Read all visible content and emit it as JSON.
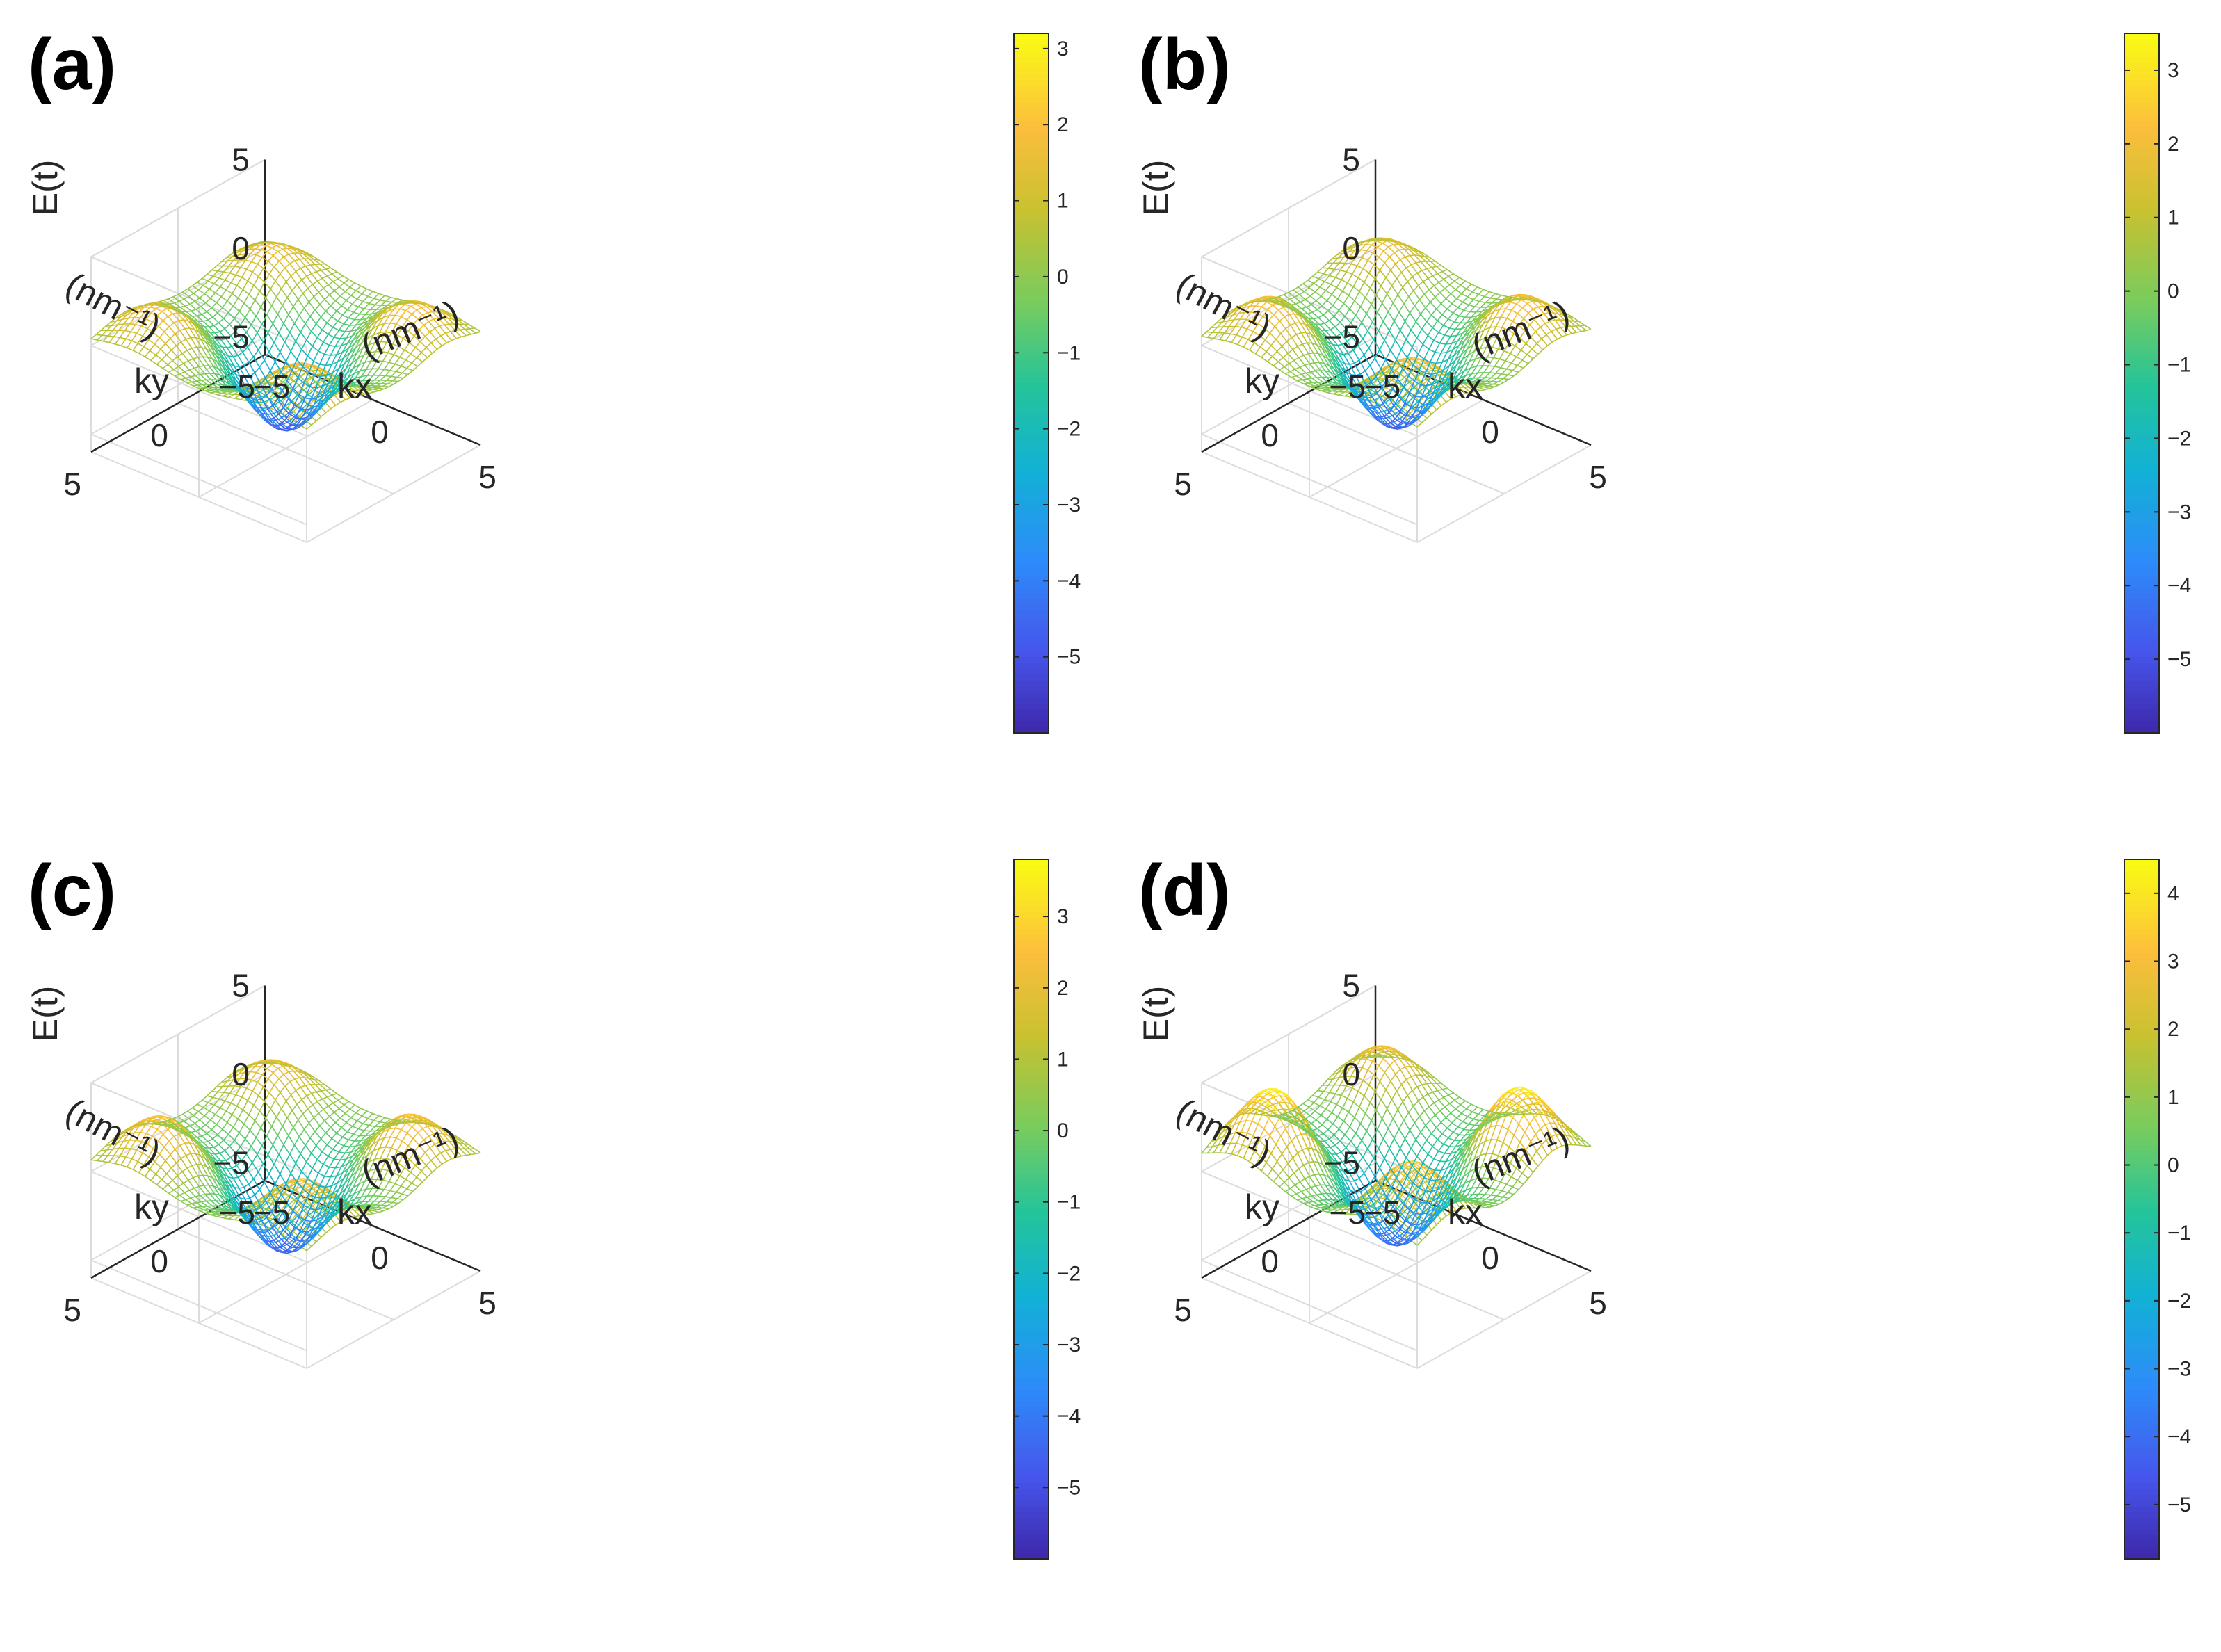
{
  "figure": {
    "panels": [
      "(a)",
      "(b)",
      "(c)",
      "(d)"
    ]
  },
  "chart_data": [
    {
      "panel": "(a)",
      "type": "surface-mesh",
      "title": "",
      "xlabel": "kx",
      "xunit": "(nm⁻¹)",
      "ylabel": "ky",
      "yunit": "(nm⁻¹)",
      "zlabel": "E(t)",
      "xlim": [
        -5,
        5
      ],
      "ylim": [
        -5,
        5
      ],
      "zlim": [
        -6,
        5
      ],
      "x_ticks": [
        "−5",
        "0",
        "5"
      ],
      "y_ticks": [
        "−5",
        "0",
        "5"
      ],
      "z_ticks": [
        "−5",
        "0",
        "5"
      ],
      "colorbar": {
        "min": -6,
        "max": 3.2,
        "ticks": [
          "3",
          "2",
          "1",
          "0",
          "−1",
          "−2",
          "−3",
          "−4",
          "−5"
        ],
        "tick_values": [
          3,
          2,
          1,
          0,
          -1,
          -2,
          -3,
          -4,
          -5
        ]
      },
      "surface": {
        "min_at": [
          0,
          0
        ],
        "min_value": -6,
        "edge_level": 0.2,
        "hump_amplitude": 1.4,
        "hump_spread": 0.0
      }
    },
    {
      "panel": "(b)",
      "type": "surface-mesh",
      "title": "",
      "xlabel": "kx",
      "xunit": "(nm⁻¹)",
      "ylabel": "ky",
      "yunit": "(nm⁻¹)",
      "zlabel": "E(t)",
      "xlim": [
        -5,
        5
      ],
      "ylim": [
        -5,
        5
      ],
      "zlim": [
        -6,
        5
      ],
      "x_ticks": [
        "−5",
        "0",
        "5"
      ],
      "y_ticks": [
        "−5",
        "0",
        "5"
      ],
      "z_ticks": [
        "−5",
        "0",
        "5"
      ],
      "colorbar": {
        "min": -6,
        "max": 3.5,
        "ticks": [
          "3",
          "2",
          "1",
          "0",
          "−1",
          "−2",
          "−3",
          "−4",
          "−5"
        ],
        "tick_values": [
          3,
          2,
          1,
          0,
          -1,
          -2,
          -3,
          -4,
          -5
        ]
      },
      "surface": {
        "min_at": [
          0,
          0
        ],
        "min_value": -6,
        "edge_level": 0.3,
        "hump_amplitude": 1.6,
        "hump_spread": 0.05
      }
    },
    {
      "panel": "(c)",
      "type": "surface-mesh",
      "title": "",
      "xlabel": "kx",
      "xunit": "(nm⁻¹)",
      "ylabel": "ky",
      "yunit": "(nm⁻¹)",
      "zlabel": "E(t)",
      "xlim": [
        -5,
        5
      ],
      "ylim": [
        -5,
        5
      ],
      "zlim": [
        -6,
        5
      ],
      "x_ticks": [
        "−5",
        "0",
        "5"
      ],
      "y_ticks": [
        "−5",
        "0",
        "5"
      ],
      "z_ticks": [
        "−5",
        "0",
        "5"
      ],
      "colorbar": {
        "min": -6,
        "max": 3.8,
        "ticks": [
          "3",
          "2",
          "1",
          "0",
          "−1",
          "−2",
          "−3",
          "−4",
          "−5"
        ],
        "tick_values": [
          3,
          2,
          1,
          0,
          -1,
          -2,
          -3,
          -4,
          -5
        ]
      },
      "surface": {
        "min_at": [
          0,
          0
        ],
        "min_value": -6,
        "edge_level": 0.4,
        "hump_amplitude": 1.8,
        "hump_spread": 0.1
      }
    },
    {
      "panel": "(d)",
      "type": "surface-mesh",
      "title": "",
      "xlabel": "kx",
      "xunit": "(nm⁻¹)",
      "ylabel": "ky",
      "yunit": "(nm⁻¹)",
      "zlabel": "E(t)",
      "xlim": [
        -5,
        5
      ],
      "ylim": [
        -5,
        5
      ],
      "zlim": [
        -6,
        5
      ],
      "x_ticks": [
        "−5",
        "0",
        "5"
      ],
      "y_ticks": [
        "−5",
        "0",
        "5"
      ],
      "z_ticks": [
        "−5",
        "0",
        "5"
      ],
      "colorbar": {
        "min": -5.8,
        "max": 4.5,
        "ticks": [
          "4",
          "3",
          "2",
          "1",
          "0",
          "−1",
          "−2",
          "−3",
          "−4",
          "−5"
        ],
        "tick_values": [
          4,
          3,
          2,
          1,
          0,
          -1,
          -2,
          -3,
          -4,
          -5
        ]
      },
      "surface": {
        "min_at": [
          0,
          0
        ],
        "min_value": -5.8,
        "edge_level": 0.6,
        "hump_amplitude": 2.6,
        "hump_spread": 0.3
      }
    }
  ]
}
